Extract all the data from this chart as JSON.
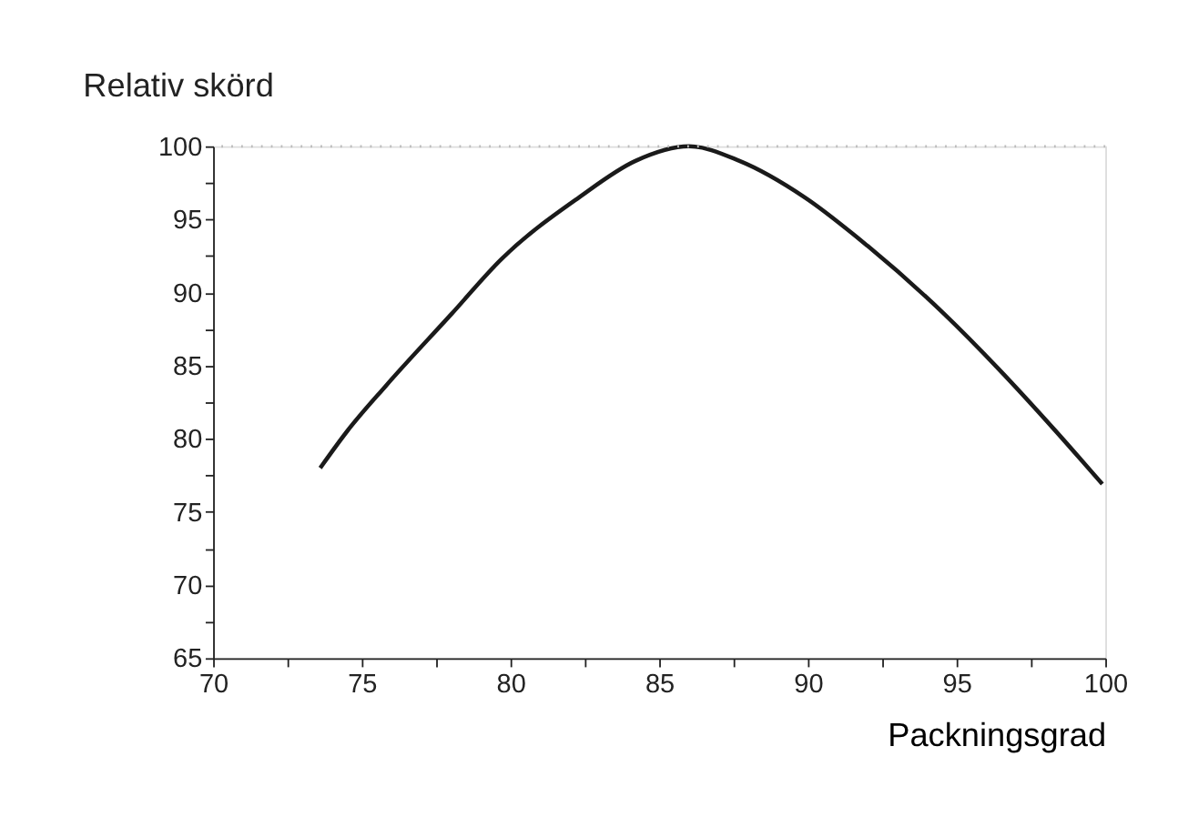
{
  "chart_data": {
    "type": "line",
    "ylabel": "Relativ skörd",
    "xlabel": "Packningsgrad",
    "x": [
      73.6,
      74.5,
      75.8,
      78.0,
      79.7,
      82.3,
      84.2,
      86.0,
      87.7,
      89.9,
      92.0,
      94.6,
      96.4,
      98.3,
      99.9
    ],
    "series": [
      {
        "color": "#1a1a1a",
        "values": [
          78.0,
          80.5,
          83.6,
          88.5,
          92.3,
          96.5,
          99.0,
          100.0,
          99.0,
          96.5,
          93.2,
          88.5,
          84.8,
          80.6,
          76.9
        ]
      }
    ],
    "xlim": [
      70,
      100
    ],
    "ylim": [
      65,
      100
    ],
    "xticks": [
      70,
      {
        "value": 72.5,
        "label": null
      },
      75,
      {
        "value": 77.5,
        "label": null
      },
      80,
      {
        "value": 82.5,
        "label": null
      },
      85,
      {
        "value": 87.5,
        "label": null
      },
      90,
      {
        "value": 92.5,
        "label": null
      },
      95,
      {
        "value": 97.5,
        "label": null
      },
      100
    ],
    "yticks": [
      65,
      {
        "value": 67.5,
        "label": null
      },
      70,
      {
        "value": 72.5,
        "label": null
      },
      75,
      {
        "value": 77.5,
        "label": null
      },
      80,
      {
        "value": 82.5,
        "label": null
      },
      85,
      {
        "value": 87.5,
        "label": null
      },
      90,
      {
        "value": 92.5,
        "label": null
      },
      95,
      {
        "value": 97.5,
        "label": null
      },
      100
    ],
    "ref_lines": [
      {
        "axis": "y",
        "value": 100,
        "label": null,
        "color": "#bbbbbb",
        "line_style": "dotted"
      }
    ],
    "grid": false,
    "marker": "none",
    "line_style": "solid"
  }
}
